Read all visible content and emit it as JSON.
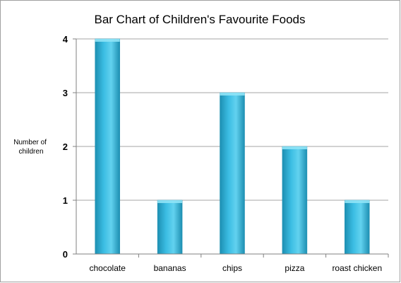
{
  "chart_data": {
    "type": "bar",
    "title": "Bar Chart of Children's Favourite Foods",
    "xlabel": "",
    "ylabel": "Number of children",
    "ylabel_lines": [
      "Number of",
      "children"
    ],
    "categories": [
      "chocolate",
      "bananas",
      "chips",
      "pizza",
      "roast chicken"
    ],
    "values": [
      4,
      1,
      3,
      2,
      1
    ],
    "ylim": [
      0,
      4
    ],
    "yticks": [
      0,
      1,
      2,
      3,
      4
    ],
    "grid": true,
    "legend": "none",
    "colors": {
      "bar_light": "#62d2ef",
      "bar_mid": "#3bbde3",
      "bar_dark": "#1d8fb2",
      "bar_cap": "#8fe3f6",
      "gridline": "#a6a6a6",
      "axis": "#808080",
      "frame": "#a0a0a0"
    }
  }
}
